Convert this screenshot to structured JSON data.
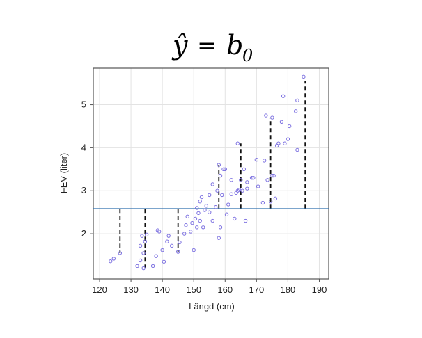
{
  "chart_data": {
    "type": "scatter",
    "title": {
      "yhat": "ŷ",
      "eq": "=",
      "b": "b",
      "sub": "0"
    },
    "xlabel": "Längd (cm)",
    "ylabel": "FEV (liter)",
    "xlim": [
      118,
      193
    ],
    "ylim": [
      0.95,
      5.85
    ],
    "x_ticks": [
      120,
      130,
      140,
      150,
      160,
      170,
      180,
      190
    ],
    "y_ticks": [
      2,
      3,
      4,
      5
    ],
    "grid": true,
    "fitted_line": {
      "y": 2.58,
      "color": "#2f6fae"
    },
    "point_color": "#7b6fe0",
    "points": [
      [
        123.5,
        1.36
      ],
      [
        124.5,
        1.42
      ],
      [
        126.5,
        1.55
      ],
      [
        132,
        1.25
      ],
      [
        133,
        1.38
      ],
      [
        133,
        1.72
      ],
      [
        133.5,
        1.95
      ],
      [
        134,
        1.2
      ],
      [
        134,
        1.55
      ],
      [
        134.5,
        1.82
      ],
      [
        135,
        1.98
      ],
      [
        137,
        1.25
      ],
      [
        138,
        1.48
      ],
      [
        138.5,
        2.08
      ],
      [
        139,
        2.05
      ],
      [
        140,
        1.62
      ],
      [
        140.5,
        1.35
      ],
      [
        141.5,
        1.82
      ],
      [
        142,
        1.95
      ],
      [
        143,
        1.72
      ],
      [
        145,
        1.58
      ],
      [
        145.5,
        1.8
      ],
      [
        147,
        2.0
      ],
      [
        147.5,
        2.2
      ],
      [
        148,
        2.4
      ],
      [
        149,
        2.05
      ],
      [
        149.5,
        2.25
      ],
      [
        150,
        1.62
      ],
      [
        150.5,
        2.35
      ],
      [
        151,
        2.15
      ],
      [
        151,
        2.6
      ],
      [
        151.5,
        2.48
      ],
      [
        152,
        2.3
      ],
      [
        152,
        2.75
      ],
      [
        152.5,
        2.85
      ],
      [
        153,
        2.15
      ],
      [
        153.5,
        2.55
      ],
      [
        154,
        2.65
      ],
      [
        155,
        2.5
      ],
      [
        155,
        2.9
      ],
      [
        156,
        2.3
      ],
      [
        156,
        3.15
      ],
      [
        157,
        2.62
      ],
      [
        157.5,
        3.0
      ],
      [
        158,
        1.9
      ],
      [
        158,
        3.6
      ],
      [
        158.5,
        2.15
      ],
      [
        158.5,
        3.35
      ],
      [
        159,
        2.9
      ],
      [
        159.5,
        3.5
      ],
      [
        160,
        3.5
      ],
      [
        160.5,
        2.45
      ],
      [
        161,
        2.68
      ],
      [
        162,
        2.92
      ],
      [
        162,
        3.25
      ],
      [
        163,
        2.35
      ],
      [
        163.5,
        2.95
      ],
      [
        164,
        3.0
      ],
      [
        164,
        4.1
      ],
      [
        164.5,
        3.02
      ],
      [
        165,
        3.25
      ],
      [
        165.5,
        3.0
      ],
      [
        166,
        3.5
      ],
      [
        166.5,
        2.3
      ],
      [
        167,
        3.2
      ],
      [
        167,
        3.05
      ],
      [
        168.5,
        3.3
      ],
      [
        169,
        3.3
      ],
      [
        170,
        3.72
      ],
      [
        170.5,
        3.1
      ],
      [
        172,
        2.72
      ],
      [
        172.5,
        3.7
      ],
      [
        173,
        4.75
      ],
      [
        173.5,
        3.25
      ],
      [
        174.5,
        2.75
      ],
      [
        175,
        4.7
      ],
      [
        175,
        3.35
      ],
      [
        175.5,
        3.35
      ],
      [
        176,
        2.82
      ],
      [
        176.5,
        4.05
      ],
      [
        177,
        4.1
      ],
      [
        178,
        4.6
      ],
      [
        178.5,
        5.2
      ],
      [
        179,
        4.1
      ],
      [
        180,
        4.2
      ],
      [
        180.5,
        4.5
      ],
      [
        182.5,
        4.85
      ],
      [
        183,
        5.1
      ],
      [
        183,
        3.95
      ],
      [
        185,
        5.65
      ]
    ],
    "residuals": [
      [
        126.5,
        1.55
      ],
      [
        134.5,
        1.2
      ],
      [
        145,
        1.58
      ],
      [
        158,
        3.6
      ],
      [
        165,
        4.1
      ],
      [
        174.5,
        4.7
      ],
      [
        185.5,
        5.55
      ]
    ]
  }
}
